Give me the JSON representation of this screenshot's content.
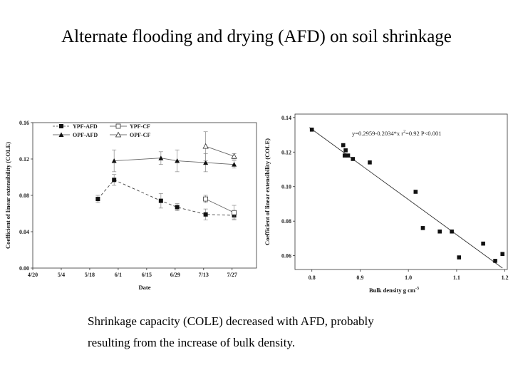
{
  "title": "Alternate flooding and drying (AFD) on soil shrinkage",
  "caption": {
    "line1": "Shrinkage capacity (COLE) decreased with AFD, probably",
    "line2": "resulting from the increase of bulk density."
  },
  "chart_data": [
    {
      "type": "line",
      "xlabel": "Date",
      "ylabel": "Coefficient of linear extensibility (COLE)",
      "categories": [
        "4/20",
        "5/4",
        "5/18",
        "6/1",
        "6/15",
        "6/29",
        "7/13",
        "7/27"
      ],
      "yticks": [
        "0.00",
        "0.04",
        "0.08",
        "0.12",
        "0.16"
      ],
      "ylim": [
        0,
        0.16
      ],
      "legend_position": "top-left",
      "series": [
        {
          "name": "YPF-AFD",
          "marker": "filled-square",
          "line": "dashed",
          "points": [
            {
              "x": "5/22",
              "y": 0.076
            },
            {
              "x": "5/30",
              "y": 0.097
            },
            {
              "x": "6/22",
              "y": 0.074
            },
            {
              "x": "6/30",
              "y": 0.067
            },
            {
              "x": "7/14",
              "y": 0.059
            },
            {
              "x": "7/28",
              "y": 0.058
            }
          ]
        },
        {
          "name": "YPF-CF",
          "marker": "open-square",
          "line": "solid",
          "points": [
            {
              "x": "7/14",
              "y": 0.076
            },
            {
              "x": "7/28",
              "y": 0.061
            }
          ]
        },
        {
          "name": "OPF-AFD",
          "marker": "filled-triangle",
          "line": "solid",
          "points": [
            {
              "x": "5/30",
              "y": 0.118
            },
            {
              "x": "6/22",
              "y": 0.121
            },
            {
              "x": "6/30",
              "y": 0.118
            },
            {
              "x": "7/14",
              "y": 0.116
            },
            {
              "x": "7/28",
              "y": 0.114
            }
          ]
        },
        {
          "name": "OPF-CF",
          "marker": "open-triangle",
          "line": "solid",
          "points": [
            {
              "x": "7/14",
              "y": 0.134
            },
            {
              "x": "7/28",
              "y": 0.123
            }
          ]
        }
      ]
    },
    {
      "type": "scatter",
      "xlabel": "Bulk density g cm",
      "xlabel_sup": "-3",
      "ylabel": "Coefficient of linear extensibility (COLE)",
      "xticks": [
        "0.8",
        "0.9",
        "1.0",
        "1.1",
        "1.2"
      ],
      "yticks": [
        "0.06",
        "0.08",
        "0.10",
        "0.12",
        "0.14"
      ],
      "xlim": [
        0.8,
        1.2
      ],
      "ylim": [
        0.06,
        0.14
      ],
      "annotation": {
        "eq": "y=0.2959-0.2034*x",
        "r2": "r",
        "r2_sup": "2",
        "r2_val": "=0.92",
        "p": "P<0.001"
      },
      "fit": {
        "intercept": 0.2959,
        "slope": -0.2034
      },
      "points": [
        {
          "x": 0.8,
          "y": 0.133
        },
        {
          "x": 0.865,
          "y": 0.124
        },
        {
          "x": 0.868,
          "y": 0.118
        },
        {
          "x": 0.87,
          "y": 0.121
        },
        {
          "x": 0.875,
          "y": 0.118
        },
        {
          "x": 0.885,
          "y": 0.116
        },
        {
          "x": 0.92,
          "y": 0.114
        },
        {
          "x": 1.015,
          "y": 0.097
        },
        {
          "x": 1.03,
          "y": 0.076
        },
        {
          "x": 1.065,
          "y": 0.074
        },
        {
          "x": 1.09,
          "y": 0.074
        },
        {
          "x": 1.105,
          "y": 0.059
        },
        {
          "x": 1.155,
          "y": 0.067
        },
        {
          "x": 1.18,
          "y": 0.057
        },
        {
          "x": 1.195,
          "y": 0.061
        }
      ]
    }
  ]
}
